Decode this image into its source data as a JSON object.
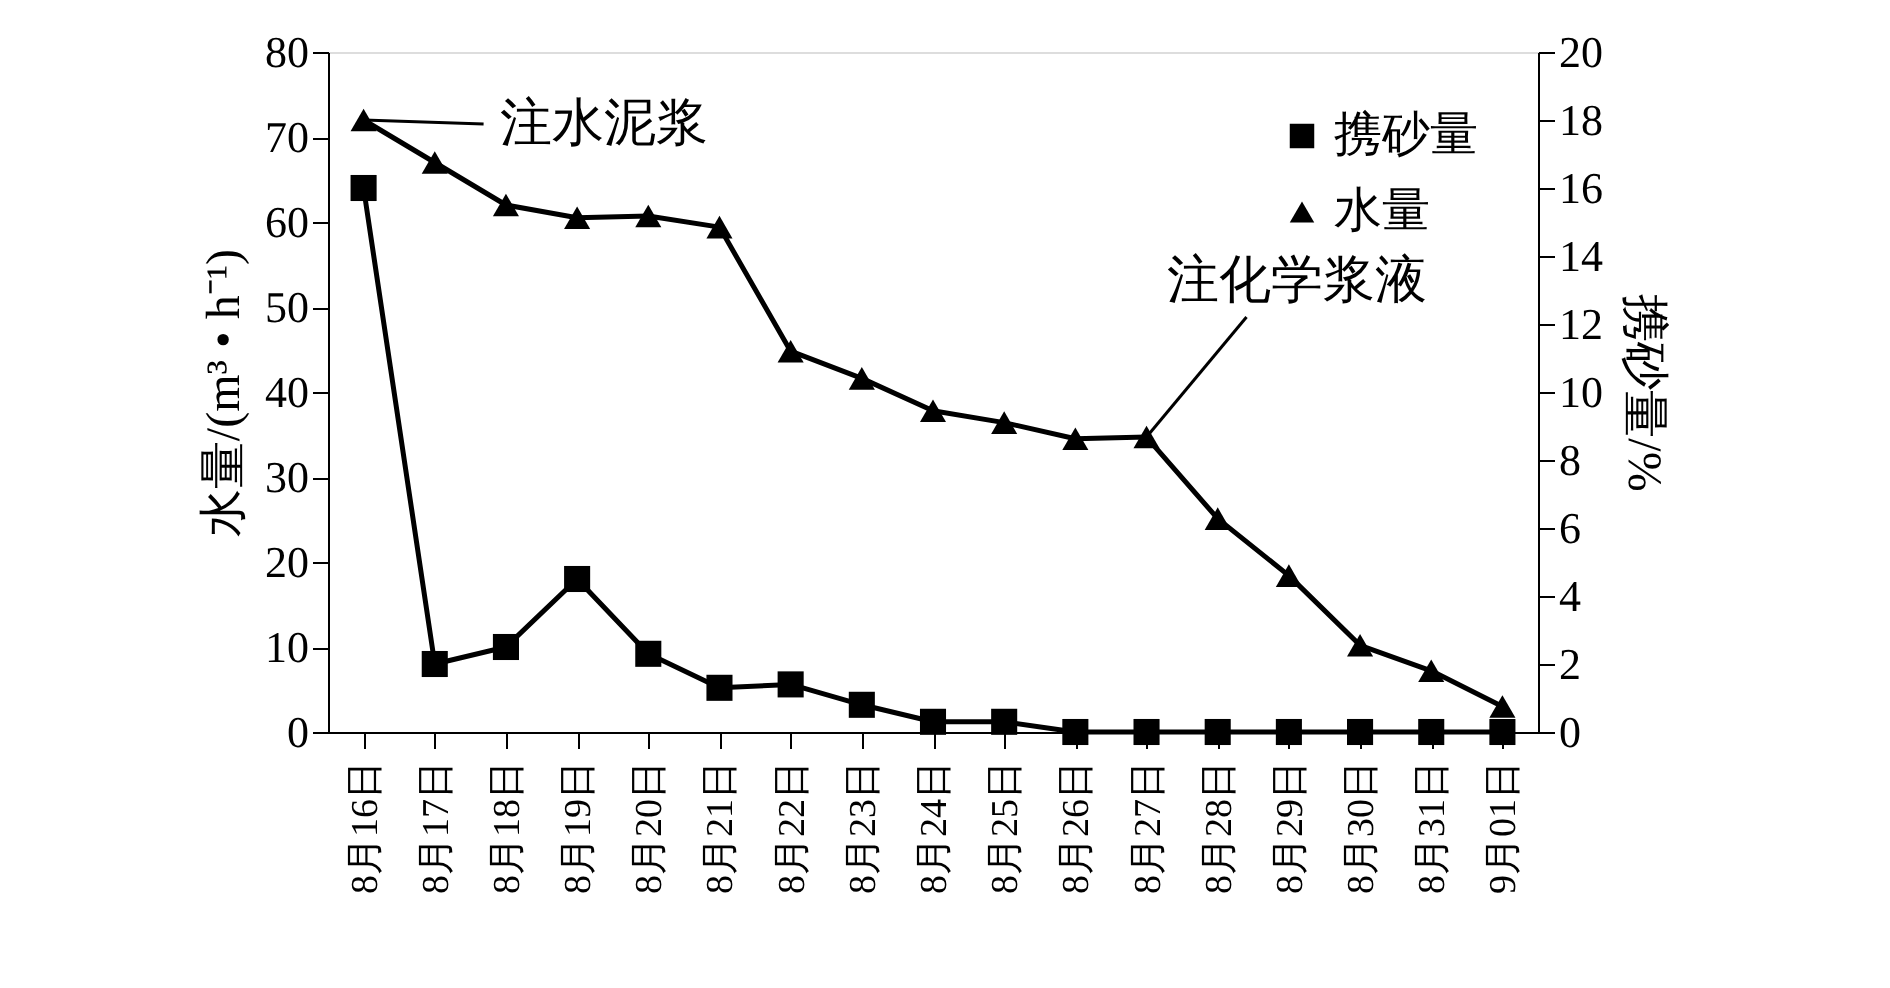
{
  "chart_data": {
    "type": "line",
    "xlabel": null,
    "ylabel": "水量/(m³ • h⁻¹)",
    "y2label": "携砂量/%",
    "categories": [
      "8月16日",
      "8月17日",
      "8月18日",
      "8月19日",
      "8月20日",
      "8月21日",
      "8月22日",
      "8月23日",
      "8月24日",
      "8月25日",
      "8月26日",
      "8月27日",
      "8月28日",
      "8月29日",
      "8月30日",
      "8月31日",
      "9月01日"
    ],
    "series": [
      {
        "name": "携砂量",
        "color": "#000000",
        "marker": "square",
        "axis": "y2",
        "values": [
          16.0,
          2.0,
          2.5,
          4.5,
          2.3,
          1.3,
          1.4,
          0.8,
          0.3,
          0.3,
          0,
          0,
          0,
          0,
          0,
          0,
          0
        ]
      },
      {
        "name": "水量",
        "color": "#000000",
        "marker": "triangle",
        "values": [
          72,
          67,
          62,
          60.5,
          60.7,
          59.4,
          44.8,
          41.6,
          37.8,
          36.4,
          34.5,
          34.7,
          25.1,
          18.4,
          10.2,
          7.2,
          3.0
        ]
      }
    ],
    "ylim": [
      0,
      80
    ],
    "yticks": [
      0,
      10,
      20,
      30,
      40,
      50,
      60,
      70,
      80
    ],
    "y2lim": [
      0,
      20
    ],
    "y2ticks": [
      0,
      2,
      4,
      6,
      8,
      10,
      12,
      14,
      16,
      18,
      20
    ],
    "annotations": [
      {
        "text": "注水泥浆",
        "x": "8月16日",
        "y": 72
      },
      {
        "text": "注化学浆液",
        "x": "8月27日",
        "y": 34.7
      }
    ],
    "legend": "top right",
    "grid": false
  }
}
